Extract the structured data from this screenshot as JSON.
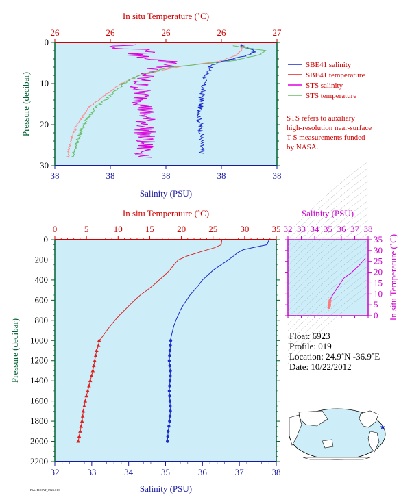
{
  "colors": {
    "temperature": "#dd2222",
    "salinity": "#1a2acc",
    "sts_salinity": "#dd00dd",
    "sts_temperature": "#66bb66",
    "sts_temperature_alt": "#ff8888",
    "plot_bg": "#cdeef8",
    "pressure_axis": "#006030",
    "salinity_axis": "#1a1aa0",
    "temperature_axis": "#d00000",
    "ts_axis": "#cc00cc"
  },
  "top_panel": {
    "top_axis_label": "In situ Temperature (˚C)",
    "top_ticks": [
      "26",
      "26",
      "26",
      "26",
      "27"
    ],
    "bottom_axis_label": "Salinity (PSU)",
    "bottom_ticks": [
      "38",
      "38",
      "38",
      "38",
      "38"
    ],
    "left_axis_label": "Pressure (decibar)",
    "left_ticks": [
      "0",
      "10",
      "20",
      "30"
    ],
    "legend": [
      {
        "label": "SBE41 salinity",
        "color": "#1a2acc"
      },
      {
        "label": "SBE41 temperature",
        "color": "#dd2222"
      },
      {
        "label": "STS salinity",
        "color": "#dd00dd"
      },
      {
        "label": "STS temperature",
        "color": "#66bb66"
      }
    ],
    "note_lines": [
      "STS refers to auxiliary",
      "high-resolution near-surface",
      "T-S measurements funded",
      "by NASA."
    ]
  },
  "main_panel": {
    "top_axis_label": "In situ Temperature (˚C)",
    "top_ticks": [
      "0",
      "5",
      "10",
      "15",
      "20",
      "25",
      "30",
      "35"
    ],
    "bottom_axis_label": "Salinity (PSU)",
    "bottom_ticks": [
      "32",
      "33",
      "34",
      "35",
      "36",
      "37",
      "38"
    ],
    "left_axis_label": "Pressure (decibar)",
    "left_ticks": [
      "0",
      "200",
      "400",
      "600",
      "800",
      "1000",
      "1200",
      "1400",
      "1600",
      "1800",
      "2000",
      "2200"
    ]
  },
  "ts_panel": {
    "top_axis_label": "Salinity (PSU)",
    "top_ticks": [
      "32",
      "33",
      "34",
      "35",
      "36",
      "37",
      "38"
    ],
    "right_axis_label": "In situ Temperature (˚C)",
    "right_ticks": [
      "0",
      "5",
      "10",
      "15",
      "20",
      "25",
      "30",
      "35"
    ]
  },
  "info": {
    "float": "Float:  6923",
    "profile": "Profile:  019",
    "location": "Location:  24.9˚N  -36.9˚E",
    "date": "Date:  10/22/2012"
  },
  "footer_text": "Plot: FLOAT_6923.019",
  "chart_data": [
    {
      "type": "line",
      "id": "main-profile",
      "xlabel": "Salinity (PSU)",
      "x2label": "In situ Temperature (˚C)",
      "ylabel": "Pressure (decibar)",
      "xlim": [
        32,
        38
      ],
      "x2lim": [
        0,
        35
      ],
      "ylim": [
        0,
        2200
      ],
      "y_inverted": true,
      "series": [
        {
          "name": "temperature",
          "axis": "top",
          "points": [
            [
              26.5,
              0
            ],
            [
              26.4,
              5
            ],
            [
              26.3,
              50
            ],
            [
              25.2,
              80
            ],
            [
              23,
              120
            ],
            [
              21,
              160
            ],
            [
              19.5,
              200
            ],
            [
              18.8,
              250
            ],
            [
              18.2,
              300
            ],
            [
              17.4,
              350
            ],
            [
              16.5,
              400
            ],
            [
              15.6,
              450
            ],
            [
              14.6,
              500
            ],
            [
              13.5,
              550
            ],
            [
              12.6,
              600
            ],
            [
              11.8,
              650
            ],
            [
              11,
              700
            ],
            [
              10.2,
              750
            ],
            [
              9.5,
              800
            ],
            [
              8.7,
              860
            ],
            [
              8,
              920
            ],
            [
              7.3,
              980
            ],
            [
              7,
              1000
            ],
            [
              6.9,
              1050
            ],
            [
              6.6,
              1100
            ],
            [
              6.3,
              1200
            ],
            [
              6,
              1300
            ],
            [
              5.6,
              1400
            ],
            [
              5.2,
              1500
            ],
            [
              4.8,
              1600
            ],
            [
              4.5,
              1700
            ],
            [
              4.3,
              1800
            ],
            [
              4,
              1900
            ],
            [
              3.7,
              2000
            ]
          ],
          "marker_from": 1000
        },
        {
          "name": "salinity",
          "axis": "bottom",
          "points": [
            [
              37.8,
              0
            ],
            [
              37.8,
              5
            ],
            [
              37.75,
              50
            ],
            [
              37.35,
              80
            ],
            [
              37.1,
              100
            ],
            [
              36.95,
              130
            ],
            [
              36.85,
              160
            ],
            [
              36.7,
              200
            ],
            [
              36.5,
              250
            ],
            [
              36.3,
              300
            ],
            [
              36.15,
              350
            ],
            [
              36.0,
              400
            ],
            [
              35.9,
              450
            ],
            [
              35.78,
              500
            ],
            [
              35.66,
              550
            ],
            [
              35.57,
              600
            ],
            [
              35.48,
              650
            ],
            [
              35.4,
              700
            ],
            [
              35.34,
              750
            ],
            [
              35.28,
              800
            ],
            [
              35.22,
              860
            ],
            [
              35.18,
              920
            ],
            [
              35.14,
              980
            ],
            [
              35.14,
              1000
            ],
            [
              35.12,
              1100
            ],
            [
              35.1,
              1200
            ],
            [
              35.13,
              1300
            ],
            [
              35.12,
              1400
            ],
            [
              35.1,
              1500
            ],
            [
              35.12,
              1600
            ],
            [
              35.13,
              1700
            ],
            [
              35.11,
              1800
            ],
            [
              35.07,
              1900
            ],
            [
              35.05,
              2000
            ]
          ],
          "marker_from": 1000
        }
      ]
    },
    {
      "type": "line",
      "id": "near-surface",
      "xlabel": "Salinity (PSU)",
      "x2label": "In situ Temperature (˚C)",
      "ylabel": "Pressure (decibar)",
      "ylim": [
        0,
        30
      ],
      "y_inverted": true,
      "series": [
        {
          "name": "SBE41 salinity",
          "points": [
            [
              0.83,
              0.5
            ],
            [
              0.9,
              2
            ],
            [
              0.88,
              3
            ],
            [
              0.8,
              4
            ],
            [
              0.73,
              5
            ],
            [
              0.7,
              6
            ],
            [
              0.68,
              8
            ],
            [
              0.67,
              10
            ],
            [
              0.66,
              14
            ],
            [
              0.65,
              18
            ],
            [
              0.66,
              22
            ],
            [
              0.66,
              27
            ]
          ]
        },
        {
          "name": "SBE41 temperature",
          "points": [
            [
              0.85,
              0.5
            ],
            [
              0.84,
              2
            ],
            [
              0.82,
              3
            ],
            [
              0.75,
              4.5
            ],
            [
              0.55,
              6
            ],
            [
              0.38,
              8
            ],
            [
              0.3,
              10
            ],
            [
              0.22,
              13
            ],
            [
              0.15,
              16
            ],
            [
              0.1,
              20
            ],
            [
              0.07,
              24
            ],
            [
              0.06,
              28
            ]
          ]
        },
        {
          "name": "STS salinity",
          "points": [
            [
              0.38,
              0.5
            ],
            [
              0.22,
              1
            ],
            [
              0.45,
              2
            ],
            [
              0.35,
              3
            ],
            [
              0.55,
              5
            ],
            [
              0.42,
              7
            ],
            [
              0.38,
              10
            ],
            [
              0.4,
              15
            ],
            [
              0.41,
              20
            ],
            [
              0.4,
              25
            ],
            [
              0.41,
              28
            ]
          ]
        },
        {
          "name": "STS temperature",
          "points": [
            [
              0.8,
              0.8
            ],
            [
              0.95,
              2
            ],
            [
              0.92,
              3
            ],
            [
              0.8,
              4.5
            ],
            [
              0.52,
              6
            ],
            [
              0.38,
              8
            ],
            [
              0.31,
              10
            ],
            [
              0.25,
              13
            ],
            [
              0.18,
              16
            ],
            [
              0.13,
              20
            ],
            [
              0.1,
              24
            ],
            [
              0.08,
              28
            ]
          ]
        }
      ]
    },
    {
      "type": "scatter",
      "id": "ts-diagram",
      "xlabel": "Salinity (PSU)",
      "ylabel": "In situ Temperature (˚C)",
      "xlim": [
        32,
        38
      ],
      "ylim": [
        0,
        35
      ],
      "series": [
        {
          "name": "T-S",
          "points": [
            [
              37.8,
              26.5
            ],
            [
              37.3,
              23
            ],
            [
              36.7,
              19.5
            ],
            [
              36.2,
              17.4
            ],
            [
              35.9,
              14.6
            ],
            [
              35.6,
              12
            ],
            [
              35.4,
              10
            ],
            [
              35.25,
              8.5
            ],
            [
              35.15,
              7
            ],
            [
              35.12,
              6
            ],
            [
              35.12,
              5
            ],
            [
              35.1,
              4.5
            ],
            [
              35.06,
              3.8
            ]
          ]
        }
      ]
    }
  ]
}
